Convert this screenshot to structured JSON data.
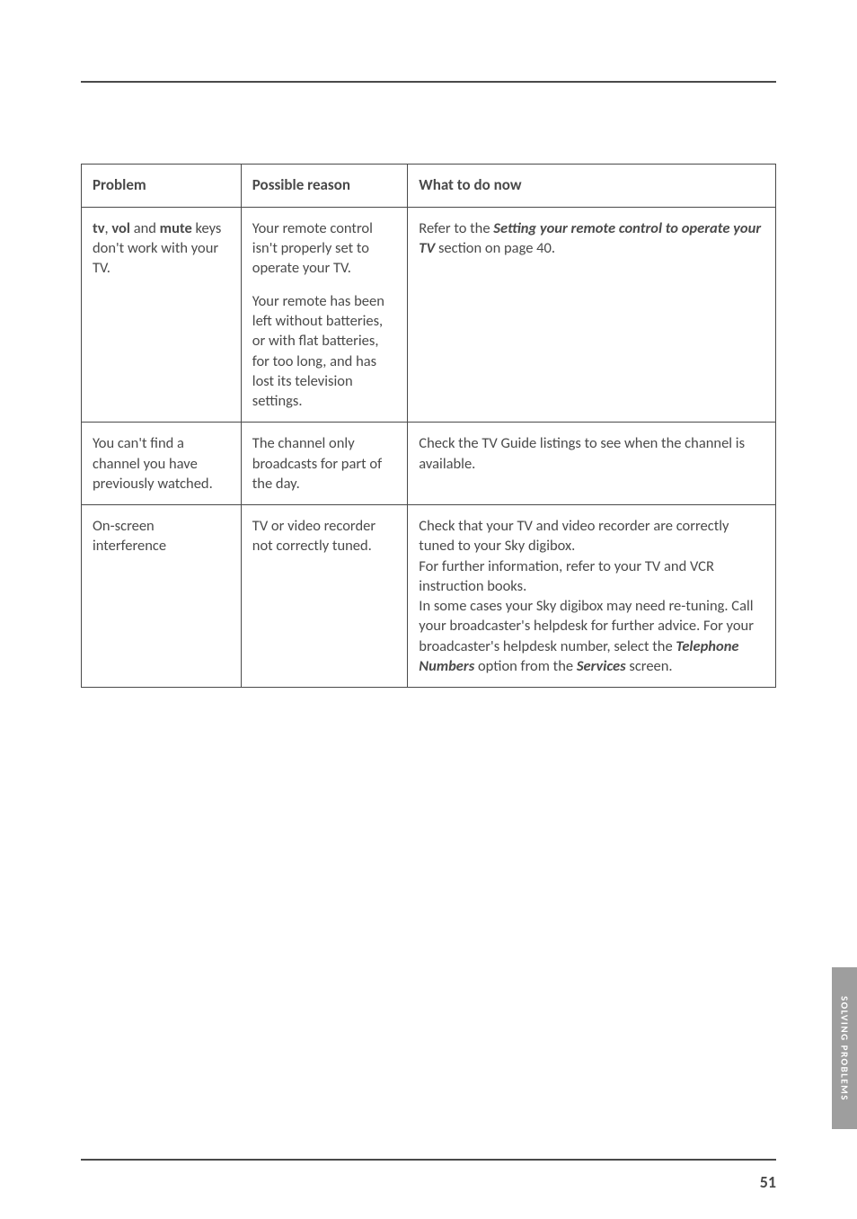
{
  "page": {
    "number": "51",
    "side_tab": "SOLVING PROBLEMS"
  },
  "table": {
    "headers": {
      "problem": "Problem",
      "reason": "Possible reason",
      "action": "What to do now"
    },
    "rows": [
      {
        "problem": {
          "b1": "tv",
          "t1": ", ",
          "b2": "vol",
          "t2": " and ",
          "b3": "mute",
          "t3": " keys don't work with your TV."
        },
        "reason": {
          "p1": "Your remote control isn't properly set to operate your TV.",
          "p2": "Your remote has been left without batteries, or with flat batteries, for too long, and has lost its television settings."
        },
        "action": {
          "t1": "Refer to the ",
          "bi1": "Setting your remote control to operate your TV",
          "t2": " section on page 40."
        }
      },
      {
        "problem": {
          "t1": "You can't find a channel you have previously watched."
        },
        "reason": {
          "t1": "The channel only broadcasts for part of the day."
        },
        "action": {
          "t1": "Check the TV Guide listings to see when the channel is available."
        }
      },
      {
        "problem": {
          "t1": "On-screen interference"
        },
        "reason": {
          "t1": "TV or video recorder not correctly tuned."
        },
        "action": {
          "t1": "Check that your TV and video recorder are correctly tuned to your Sky digibox.",
          "t2": "For further information, refer to your TV and VCR instruction books.",
          "t3a": "In some cases your Sky digibox may need re-tuning.  Call your broadcaster's helpdesk for further advice.  For your broadcaster's helpdesk number, select the ",
          "bi3a": "Telephone Numbers",
          "t3b": " option from the ",
          "bi3b": "Services",
          "t3c": " screen."
        }
      }
    ]
  },
  "style": {
    "background": "#ffffff",
    "rule_color": "#4a4a4a",
    "text_color": "#4a4a4a",
    "side_tab_bg": "#9e9e9e",
    "side_tab_text": "#ffffff",
    "font_family": "Gill Sans",
    "body_fontsize": 16.5,
    "header_fontsize": 17,
    "page_number_fontsize": 18,
    "side_tab_fontsize": 11
  }
}
